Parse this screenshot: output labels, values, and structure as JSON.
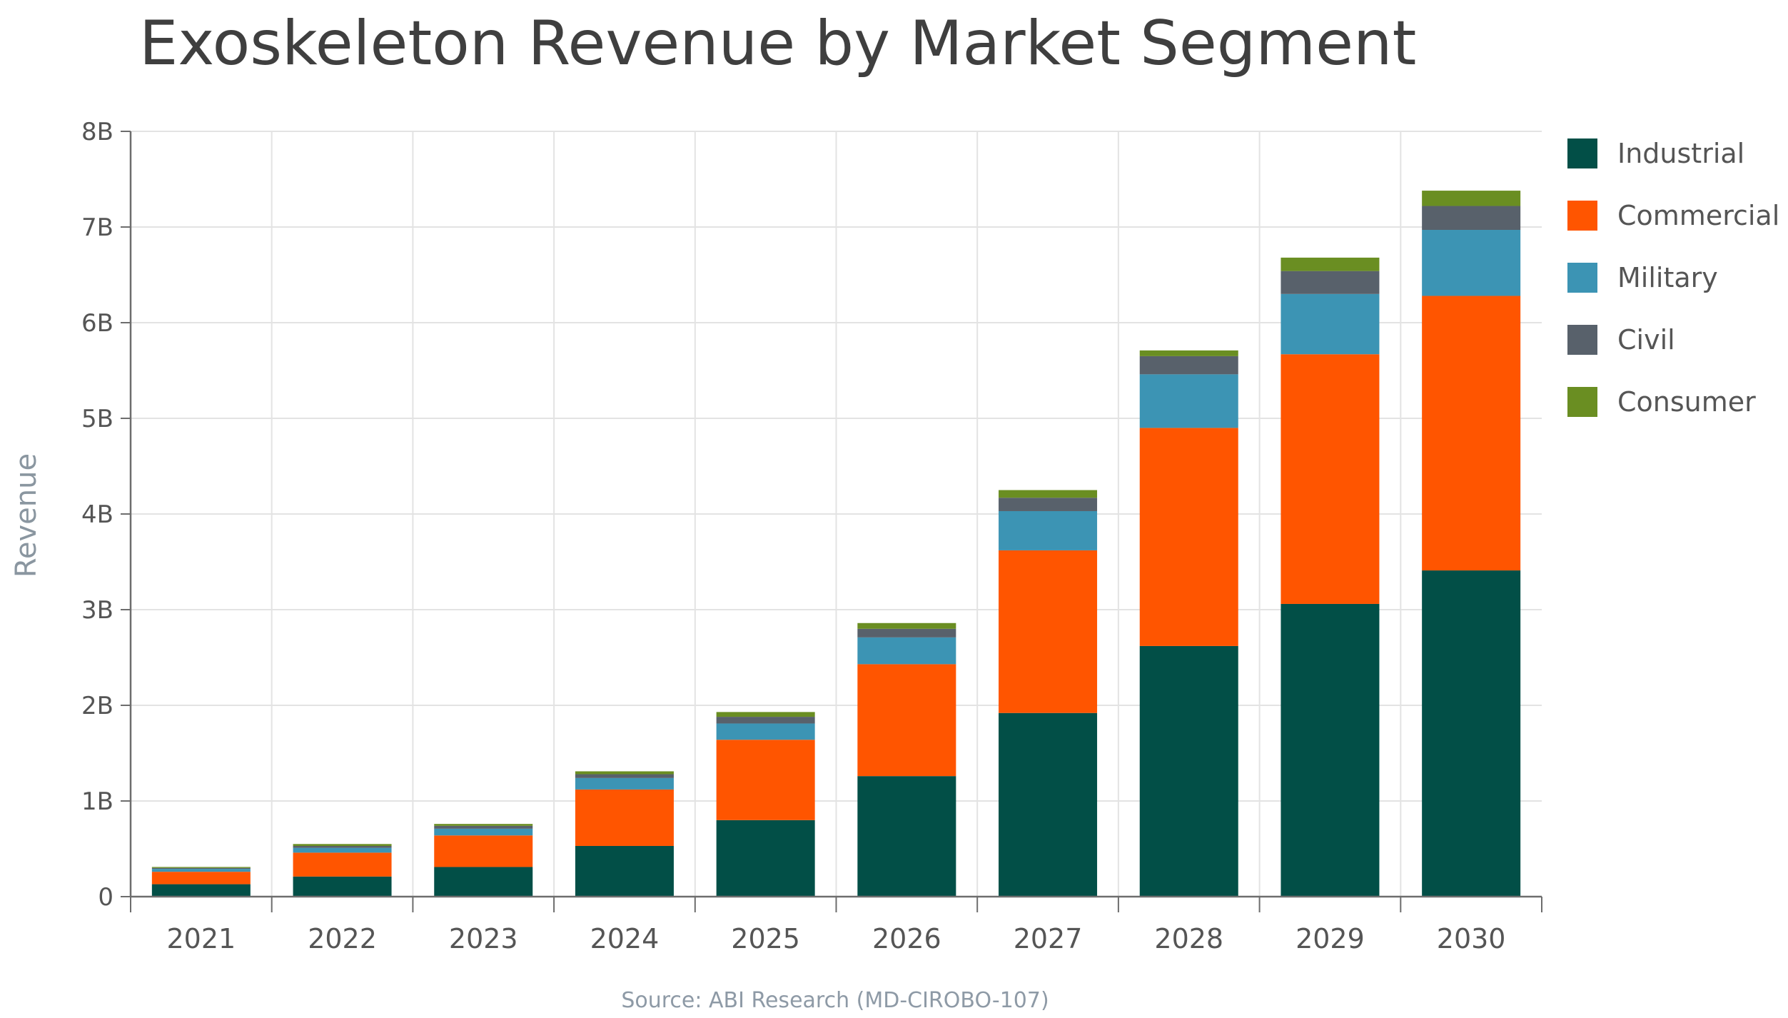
{
  "chart_data": {
    "type": "bar",
    "stacked": true,
    "title": "Exoskeleton Revenue by Market Segment",
    "xlabel": "",
    "ylabel": "Revenue",
    "source": "Source: ABI Research (MD-CIROBO-107)",
    "categories": [
      "2021",
      "2022",
      "2023",
      "2024",
      "2025",
      "2026",
      "2027",
      "2028",
      "2029",
      "2030"
    ],
    "ylim": [
      0,
      8
    ],
    "yticks": [
      {
        "value": 0,
        "label": "0"
      },
      {
        "value": 1,
        "label": "1B"
      },
      {
        "value": 2,
        "label": "2B"
      },
      {
        "value": 3,
        "label": "3B"
      },
      {
        "value": 4,
        "label": "4B"
      },
      {
        "value": 5,
        "label": "5B"
      },
      {
        "value": 6,
        "label": "6B"
      },
      {
        "value": 7,
        "label": "7B"
      },
      {
        "value": 8,
        "label": "8B"
      }
    ],
    "grid": true,
    "legend_position": "right",
    "series": [
      {
        "name": "Industrial",
        "color": "#024f47",
        "values": [
          0.13,
          0.21,
          0.31,
          0.53,
          0.8,
          1.26,
          1.92,
          2.62,
          3.06,
          3.41
        ]
      },
      {
        "name": "Commercial",
        "color": "#ff5500",
        "values": [
          0.13,
          0.25,
          0.33,
          0.59,
          0.84,
          1.17,
          1.7,
          2.28,
          2.61,
          2.87
        ]
      },
      {
        "name": "Military",
        "color": "#3c94b4",
        "values": [
          0.03,
          0.05,
          0.07,
          0.12,
          0.17,
          0.28,
          0.41,
          0.56,
          0.63,
          0.69
        ]
      },
      {
        "name": "Civil",
        "color": "#58616b",
        "values": [
          0.01,
          0.02,
          0.03,
          0.04,
          0.07,
          0.09,
          0.14,
          0.19,
          0.24,
          0.25
        ]
      },
      {
        "name": "Consumer",
        "color": "#6a8e22",
        "values": [
          0.01,
          0.02,
          0.02,
          0.03,
          0.05,
          0.06,
          0.08,
          0.06,
          0.14,
          0.16
        ]
      }
    ]
  },
  "colors": {
    "axis": "#6d6d6d",
    "grid": "#e3e3e3",
    "title_text": "#3f3f3f",
    "tick_text": "#555555",
    "ylabel_text": "#8a96a0",
    "source_text": "#8e9aa6"
  }
}
